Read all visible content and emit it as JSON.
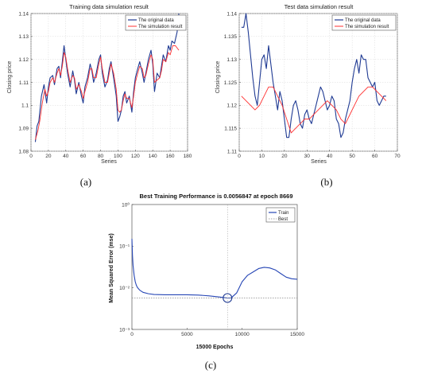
{
  "captions": {
    "a": "(a)",
    "b": "(b)",
    "c": "(c)"
  },
  "colors": {
    "original": "#1f3a93",
    "simulation": "#ff3030",
    "train": "#2646b5",
    "best": "#888888",
    "grid": "#d9d9d9"
  },
  "chart_data": [
    {
      "type": "line",
      "title": "Training data simulation result",
      "xlabel": "Series",
      "ylabel": "Closing price",
      "xlim": [
        0,
        180
      ],
      "ylim": [
        1.08,
        1.14
      ],
      "xticks": [
        0,
        20,
        40,
        60,
        80,
        100,
        120,
        140,
        160,
        180
      ],
      "yticks": [
        1.08,
        1.09,
        1.1,
        1.11,
        1.12,
        1.13,
        1.14
      ],
      "xtick_labels": [
        "0",
        "20",
        "40",
        "60",
        "80",
        "100",
        "120",
        "140",
        "160",
        "180"
      ],
      "ytick_labels": [
        "1.08",
        "1.09",
        "1.1",
        "1.11",
        "1.12",
        "1.13",
        "1.14"
      ],
      "grid": true,
      "legend": "top-right",
      "series": [
        {
          "name": "The original data",
          "color": "#1f3a93",
          "x": [
            5,
            7,
            9,
            12,
            15,
            18,
            20,
            22,
            25,
            27,
            30,
            32,
            34,
            36,
            38,
            40,
            42,
            45,
            48,
            50,
            52,
            55,
            58,
            60,
            62,
            65,
            68,
            70,
            72,
            75,
            78,
            80,
            82,
            85,
            88,
            90,
            92,
            95,
            98,
            100,
            102,
            104,
            106,
            108,
            110,
            113,
            116,
            118,
            120,
            122,
            125,
            128,
            130,
            132,
            135,
            138,
            140,
            142,
            145,
            148,
            150,
            152,
            155,
            158,
            160,
            162,
            165,
            168,
            170
          ],
          "y": [
            1.084,
            1.091,
            1.093,
            1.104,
            1.109,
            1.101,
            1.108,
            1.112,
            1.113,
            1.109,
            1.116,
            1.117,
            1.112,
            1.119,
            1.126,
            1.12,
            1.114,
            1.108,
            1.115,
            1.111,
            1.105,
            1.11,
            1.104,
            1.101,
            1.108,
            1.112,
            1.118,
            1.115,
            1.11,
            1.114,
            1.12,
            1.122,
            1.114,
            1.108,
            1.111,
            1.116,
            1.119,
            1.112,
            1.104,
            1.093,
            1.095,
            1.098,
            1.104,
            1.106,
            1.101,
            1.104,
            1.097,
            1.106,
            1.112,
            1.115,
            1.119,
            1.114,
            1.11,
            1.114,
            1.12,
            1.124,
            1.118,
            1.106,
            1.114,
            1.112,
            1.117,
            1.122,
            1.119,
            1.126,
            1.124,
            1.128,
            1.127,
            1.132,
            1.14
          ]
        },
        {
          "name": "The simulation result",
          "color": "#ff3030",
          "x": [
            5,
            8,
            10,
            13,
            16,
            18,
            20,
            22,
            25,
            27,
            30,
            32,
            34,
            36,
            38,
            40,
            42,
            45,
            48,
            50,
            52,
            55,
            58,
            60,
            62,
            65,
            68,
            70,
            72,
            75,
            78,
            80,
            82,
            85,
            88,
            90,
            92,
            95,
            98,
            100,
            102,
            104,
            106,
            108,
            110,
            113,
            116,
            118,
            120,
            122,
            125,
            128,
            130,
            132,
            135,
            138,
            140,
            142,
            145,
            148,
            150,
            152,
            155,
            158,
            160,
            163,
            166,
            170
          ],
          "y": [
            1.085,
            1.089,
            1.093,
            1.101,
            1.107,
            1.104,
            1.106,
            1.11,
            1.112,
            1.11,
            1.114,
            1.116,
            1.113,
            1.117,
            1.123,
            1.121,
            1.116,
            1.11,
            1.113,
            1.112,
            1.107,
            1.109,
            1.106,
            1.103,
            1.106,
            1.11,
            1.116,
            1.116,
            1.112,
            1.112,
            1.118,
            1.121,
            1.116,
            1.11,
            1.11,
            1.114,
            1.118,
            1.114,
            1.107,
            1.098,
            1.097,
            1.098,
            1.102,
            1.105,
            1.103,
            1.103,
            1.099,
            1.104,
            1.11,
            1.113,
            1.117,
            1.116,
            1.112,
            1.113,
            1.118,
            1.122,
            1.12,
            1.11,
            1.111,
            1.112,
            1.115,
            1.12,
            1.119,
            1.123,
            1.122,
            1.126,
            1.126,
            1.124
          ]
        }
      ]
    },
    {
      "type": "line",
      "title": "Test data simulation result",
      "xlabel": "Series",
      "ylabel": "Closing price",
      "xlim": [
        0,
        70
      ],
      "ylim": [
        1.11,
        1.14
      ],
      "xticks": [
        0,
        10,
        20,
        30,
        40,
        50,
        60,
        70
      ],
      "yticks": [
        1.11,
        1.115,
        1.12,
        1.125,
        1.13,
        1.135,
        1.14
      ],
      "xtick_labels": [
        "0",
        "10",
        "20",
        "30",
        "40",
        "50",
        "60",
        "70"
      ],
      "ytick_labels": [
        "1.11",
        "1.115",
        "1.12",
        "1.125",
        "1.13",
        "1.135",
        "1.14"
      ],
      "grid": true,
      "legend": "top-right",
      "series": [
        {
          "name": "The original data",
          "color": "#1f3a93",
          "x": [
            1,
            2,
            3,
            4,
            5,
            6,
            7,
            8,
            9,
            10,
            11,
            12,
            13,
            14,
            15,
            16,
            17,
            18,
            19,
            20,
            21,
            22,
            23,
            24,
            25,
            26,
            27,
            28,
            29,
            30,
            31,
            32,
            33,
            34,
            35,
            36,
            37,
            38,
            39,
            40,
            41,
            42,
            43,
            44,
            45,
            46,
            47,
            48,
            49,
            50,
            51,
            52,
            53,
            54,
            55,
            56,
            57,
            58,
            59,
            60,
            61,
            62,
            63,
            64,
            65
          ],
          "y": [
            1.137,
            1.137,
            1.14,
            1.136,
            1.131,
            1.126,
            1.122,
            1.12,
            1.125,
            1.13,
            1.131,
            1.128,
            1.133,
            1.129,
            1.125,
            1.122,
            1.119,
            1.123,
            1.121,
            1.117,
            1.113,
            1.113,
            1.117,
            1.12,
            1.121,
            1.119,
            1.116,
            1.115,
            1.118,
            1.119,
            1.117,
            1.116,
            1.118,
            1.12,
            1.122,
            1.124,
            1.123,
            1.121,
            1.119,
            1.12,
            1.122,
            1.121,
            1.117,
            1.116,
            1.113,
            1.114,
            1.117,
            1.119,
            1.121,
            1.125,
            1.128,
            1.13,
            1.127,
            1.131,
            1.13,
            1.13,
            1.126,
            1.125,
            1.124,
            1.125,
            1.121,
            1.12,
            1.121,
            1.122,
            1.122
          ]
        },
        {
          "name": "The simulation result",
          "color": "#ff3030",
          "x": [
            1,
            3,
            5,
            7,
            9,
            11,
            13,
            15,
            17,
            19,
            21,
            23,
            25,
            27,
            29,
            31,
            33,
            35,
            37,
            39,
            41,
            43,
            45,
            47,
            49,
            51,
            53,
            55,
            57,
            59,
            61,
            63,
            65
          ],
          "y": [
            1.122,
            1.121,
            1.12,
            1.119,
            1.12,
            1.122,
            1.124,
            1.124,
            1.122,
            1.12,
            1.117,
            1.114,
            1.115,
            1.116,
            1.117,
            1.117,
            1.118,
            1.119,
            1.12,
            1.121,
            1.12,
            1.119,
            1.117,
            1.116,
            1.118,
            1.12,
            1.122,
            1.123,
            1.124,
            1.124,
            1.123,
            1.122,
            1.121
          ]
        }
      ]
    },
    {
      "type": "line",
      "title": "Best Training Performance is 0.0056847 at epoch 8669",
      "xlabel": "15000 Epochs",
      "ylabel": "Mean Squared Error  (mse)",
      "xlim": [
        0,
        15000
      ],
      "ylim": [
        0.001,
        1
      ],
      "yscale": "log",
      "xticks": [
        0,
        5000,
        10000,
        15000
      ],
      "xtick_labels": [
        "0",
        "5000",
        "10000",
        "15000"
      ],
      "yticks": [
        0.001,
        0.01,
        0.1,
        1
      ],
      "ytick_labels": [
        "10⁻³",
        "10⁻²",
        "10⁻¹",
        "10⁰"
      ],
      "grid": false,
      "legend": "top-right",
      "best_point": {
        "epoch": 8669,
        "mse": 0.0056847
      },
      "series": [
        {
          "name": "Train",
          "color": "#2646b5",
          "x": [
            0,
            50,
            100,
            200,
            300,
            400,
            500,
            700,
            1000,
            1500,
            2000,
            3000,
            4000,
            5000,
            6000,
            7000,
            8000,
            8669,
            9000,
            9500,
            10000,
            10500,
            11000,
            11500,
            12000,
            12500,
            13000,
            13500,
            14000,
            14500,
            15000
          ],
          "y": [
            0.15,
            0.06,
            0.035,
            0.02,
            0.014,
            0.0115,
            0.0102,
            0.0088,
            0.0078,
            0.0072,
            0.0069,
            0.0068,
            0.0068,
            0.0068,
            0.0067,
            0.0064,
            0.006,
            0.0056847,
            0.0057,
            0.0075,
            0.014,
            0.02,
            0.024,
            0.029,
            0.031,
            0.03,
            0.027,
            0.022,
            0.018,
            0.0165,
            0.016
          ]
        },
        {
          "name": "Best",
          "color": "#888888",
          "x": [
            0,
            15000
          ],
          "y": [
            0.0056847,
            0.0056847
          ]
        }
      ]
    }
  ]
}
